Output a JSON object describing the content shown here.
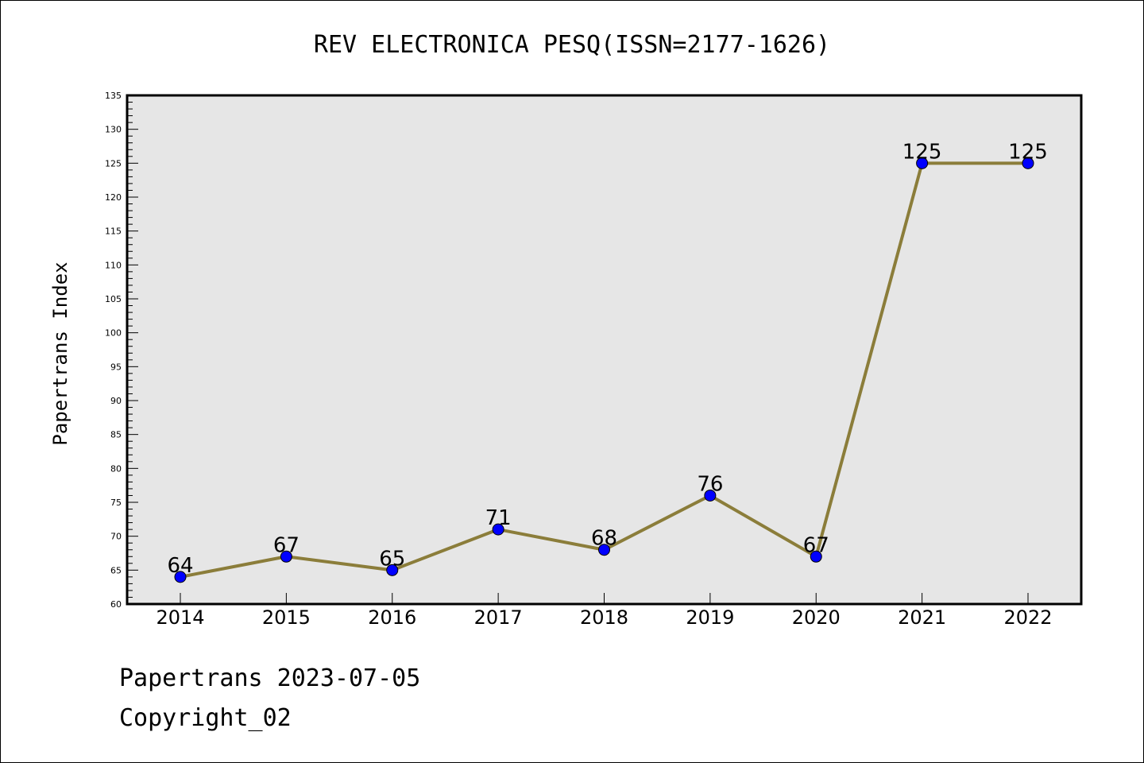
{
  "chart_data": {
    "type": "line",
    "title": "REV ELECTRONICA PESQ(ISSN=2177-1626)",
    "xlabel": "",
    "ylabel": "Papertrans Index",
    "categories": [
      "2014",
      "2015",
      "2016",
      "2017",
      "2018",
      "2019",
      "2020",
      "2021",
      "2022"
    ],
    "series": [
      {
        "values": [
          64,
          67,
          65,
          71,
          68,
          76,
          67,
          125,
          125
        ]
      }
    ],
    "ylim": [
      60,
      135
    ],
    "yticks": [
      "60",
      "65",
      "70",
      "75",
      "80",
      "85",
      "90",
      "95",
      "100",
      "105",
      "110",
      "115",
      "120",
      "125",
      "130",
      "135"
    ],
    "grid": false,
    "line_color": "#8b7d3a",
    "marker_color": "#0000ff",
    "plot_background": "#e6e6e6"
  },
  "footer": {
    "date_line": "Papertrans 2023-07-05",
    "copyright_line": "Copyright_02"
  }
}
